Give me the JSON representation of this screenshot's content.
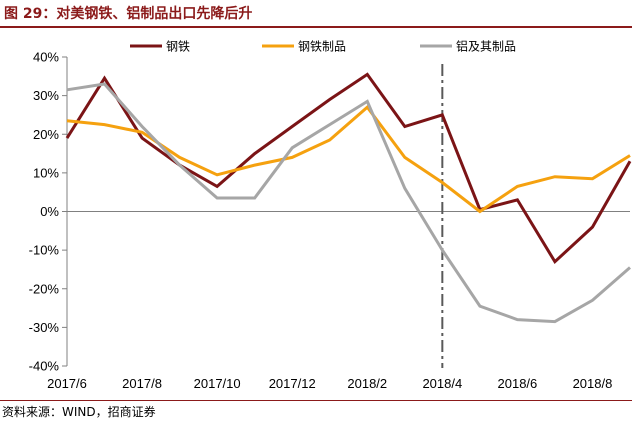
{
  "header": {
    "title": "图 29：对美钢铁、铝制品出口先降后升"
  },
  "footer": {
    "source": "资料来源：WIND，招商证券"
  },
  "chart_data": {
    "type": "line",
    "x": [
      "2017/6",
      "2017/7",
      "2017/8",
      "2017/9",
      "2017/10",
      "2017/11",
      "2017/12",
      "2018/1",
      "2018/2",
      "2018/3",
      "2018/4",
      "2018/5",
      "2018/6",
      "2018/7",
      "2018/8",
      "2018/9"
    ],
    "x_tick_labels": [
      "2017/6",
      "2017/8",
      "2017/10",
      "2017/12",
      "2018/2",
      "2018/4",
      "2018/6",
      "2018/8"
    ],
    "y_tick_labels": [
      "40%",
      "30%",
      "20%",
      "10%",
      "0%",
      "-10%",
      "-20%",
      "-30%",
      "-40%"
    ],
    "ylim": [
      -40,
      40
    ],
    "y_ticks": [
      40,
      30,
      20,
      10,
      0,
      -10,
      -20,
      -30,
      -40
    ],
    "series": [
      {
        "name": "钢铁",
        "color": "#7B1416",
        "values": [
          19,
          34.5,
          19,
          12,
          6.5,
          15,
          22,
          29,
          35.5,
          22,
          25,
          0.5,
          3,
          -13,
          -4,
          13
        ]
      },
      {
        "name": "钢铁制品",
        "color": "#F5A10F",
        "values": [
          23.5,
          22.5,
          20.5,
          14,
          9.5,
          12,
          14,
          18.5,
          27,
          14,
          7.5,
          0,
          6.5,
          9,
          8.5,
          14.5
        ]
      },
      {
        "name": "铝及其制品",
        "color": "#A6A6A6",
        "values": [
          31.5,
          33,
          22,
          12,
          3.5,
          3.5,
          16.5,
          22.5,
          28.5,
          6,
          -10,
          -24.5,
          -28,
          -28.5,
          -23,
          -14.5
        ]
      }
    ],
    "annotation": {
      "type": "vertical-dashdot-line",
      "x": "2018/4",
      "color": "#595959"
    },
    "legend_position": "top",
    "grid": false
  }
}
